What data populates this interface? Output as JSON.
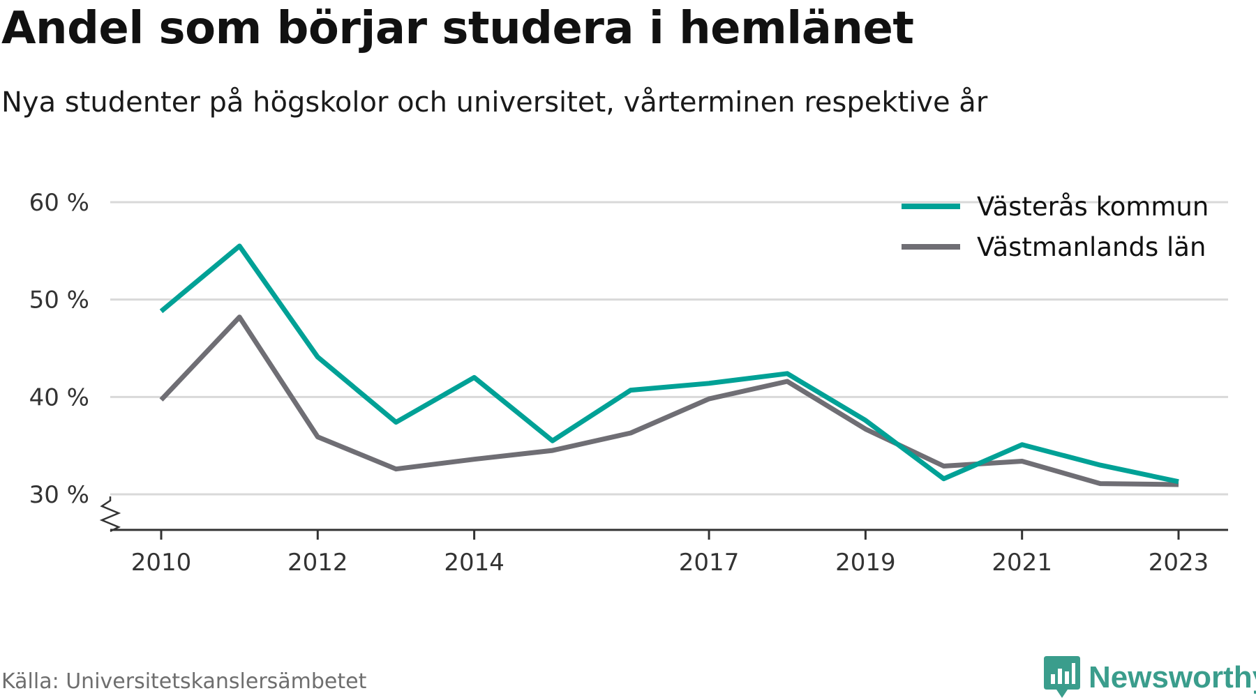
{
  "title": "Andel som börjar studera i hemlänet",
  "subtitle": "Nya studenter på högskolor och universitet, vårterminen respektive år",
  "source": "Källa: Universitetskanslersämbetet",
  "brand": "Newsworthy",
  "colors": {
    "vasteras": "#00a196",
    "vastmanland": "#6f6e74",
    "grid": "#d9d9d9",
    "axis": "#333333",
    "brand": "#3a9d8c"
  },
  "chart_data": {
    "type": "line",
    "x": [
      2010,
      2011,
      2012,
      2013,
      2014,
      2015,
      2016,
      2017,
      2018,
      2019,
      2020,
      2021,
      2022,
      2023
    ],
    "x_ticks": [
      2010,
      2012,
      2014,
      2017,
      2019,
      2021,
      2023
    ],
    "y_ticks": [
      30,
      40,
      50,
      60
    ],
    "y_tick_labels": [
      "30 %",
      "40 %",
      "50 %",
      "60 %"
    ],
    "ylim": [
      26.3,
      60
    ],
    "y_axis_break": true,
    "grid": true,
    "legend_position": "top-right",
    "series": [
      {
        "name": "Västerås kommun",
        "color_key": "vasteras",
        "values": [
          48.8,
          55.5,
          44.1,
          37.4,
          42.0,
          35.5,
          40.7,
          41.4,
          42.4,
          37.6,
          31.6,
          35.1,
          33.0,
          31.3
        ]
      },
      {
        "name": "Västmanlands län",
        "color_key": "vastmanland",
        "values": [
          39.7,
          48.2,
          35.9,
          32.6,
          33.6,
          34.5,
          36.3,
          39.8,
          41.6,
          36.7,
          32.9,
          33.4,
          31.1,
          31.0
        ]
      }
    ]
  }
}
